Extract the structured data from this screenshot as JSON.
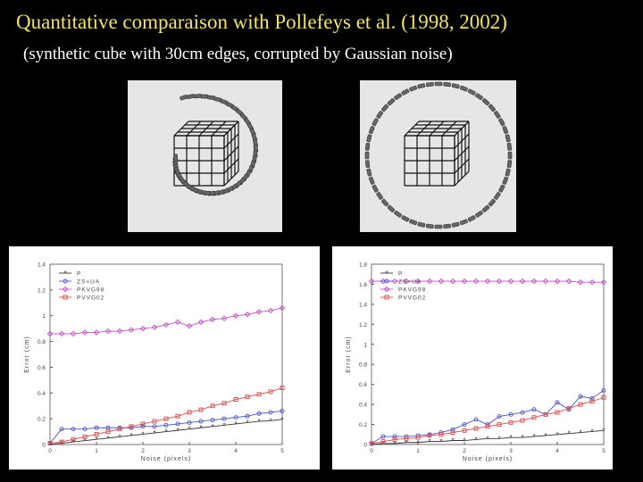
{
  "header": {
    "title": "Quantitative comparaison with Pollefeys et al. (1998, 2002)",
    "subtitle": "(synthetic cube with 30cm edges, corrupted by Gaussian noise)"
  },
  "colors": {
    "title": "#f5e64a",
    "P": "#333333",
    "ZS+UA": "#4a52c8",
    "PKVG98": "#c24ec9",
    "PVVG02": "#d8484a"
  },
  "chart_data": [
    {
      "type": "line",
      "xlabel": "Noise (pixels)",
      "ylabel": "Error (cm)",
      "xlim": [
        0,
        5
      ],
      "ylim": [
        0,
        1.4
      ],
      "xticks": [
        "0",
        "1",
        "2",
        "3",
        "4",
        "5"
      ],
      "yticks": [
        "0",
        "0.2",
        "0.4",
        "0.6",
        "0.8",
        "1",
        "1.2",
        "1.4"
      ],
      "legend_position": "top-left",
      "x": [
        0,
        0.25,
        0.5,
        0.75,
        1,
        1.25,
        1.5,
        1.75,
        2,
        2.25,
        2.5,
        2.75,
        3,
        3.25,
        3.5,
        3.75,
        4,
        4.25,
        4.5,
        4.75,
        5
      ],
      "series": [
        {
          "name": "P",
          "marker": "star",
          "values": [
            0,
            0.01,
            0.02,
            0.03,
            0.04,
            0.05,
            0.06,
            0.07,
            0.08,
            0.09,
            0.1,
            0.11,
            0.12,
            0.13,
            0.14,
            0.15,
            0.16,
            0.17,
            0.18,
            0.185,
            0.195
          ]
        },
        {
          "name": "ZS+UA",
          "marker": "circle",
          "values": [
            0.01,
            0.12,
            0.12,
            0.12,
            0.13,
            0.13,
            0.13,
            0.13,
            0.14,
            0.14,
            0.15,
            0.16,
            0.17,
            0.18,
            0.19,
            0.2,
            0.21,
            0.22,
            0.24,
            0.25,
            0.26
          ]
        },
        {
          "name": "PKVG98",
          "marker": "diamond",
          "values": [
            0.86,
            0.86,
            0.86,
            0.87,
            0.87,
            0.88,
            0.88,
            0.89,
            0.9,
            0.91,
            0.93,
            0.95,
            0.92,
            0.95,
            0.97,
            0.98,
            1.0,
            1.01,
            1.03,
            1.04,
            1.06
          ]
        },
        {
          "name": "PVVG02",
          "marker": "square",
          "values": [
            0.01,
            0.02,
            0.04,
            0.06,
            0.08,
            0.1,
            0.12,
            0.14,
            0.16,
            0.18,
            0.2,
            0.22,
            0.25,
            0.27,
            0.3,
            0.32,
            0.35,
            0.37,
            0.39,
            0.41,
            0.44
          ]
        }
      ]
    },
    {
      "type": "line",
      "xlabel": "Noise (pixels)",
      "ylabel": "Error (cm)",
      "xlim": [
        0,
        5
      ],
      "ylim": [
        0,
        1.8
      ],
      "xticks": [
        "0",
        "1",
        "2",
        "3",
        "4",
        "5"
      ],
      "yticks": [
        "0",
        "0.2",
        "0.4",
        "0.6",
        "0.8",
        "1",
        "1.2",
        "1.4",
        "1.6",
        "1.8"
      ],
      "legend_position": "top-left",
      "x": [
        0,
        0.25,
        0.5,
        0.75,
        1,
        1.25,
        1.5,
        1.75,
        2,
        2.25,
        2.5,
        2.75,
        3,
        3.25,
        3.5,
        3.75,
        4,
        4.25,
        4.5,
        4.75,
        5
      ],
      "series": [
        {
          "name": "P",
          "marker": "star",
          "values": [
            0,
            0.01,
            0.01,
            0.02,
            0.02,
            0.03,
            0.03,
            0.04,
            0.04,
            0.05,
            0.06,
            0.06,
            0.07,
            0.07,
            0.08,
            0.09,
            0.1,
            0.11,
            0.12,
            0.13,
            0.14
          ]
        },
        {
          "name": "ZS+UA",
          "marker": "circle",
          "values": [
            0.01,
            0.08,
            0.08,
            0.08,
            0.09,
            0.1,
            0.12,
            0.15,
            0.2,
            0.25,
            0.2,
            0.28,
            0.3,
            0.32,
            0.35,
            0.3,
            0.42,
            0.35,
            0.48,
            0.46,
            0.54
          ]
        },
        {
          "name": "PKVG98",
          "marker": "diamond",
          "values": [
            1.63,
            1.63,
            1.63,
            1.63,
            1.63,
            1.63,
            1.63,
            1.63,
            1.63,
            1.63,
            1.63,
            1.63,
            1.63,
            1.63,
            1.63,
            1.63,
            1.63,
            1.63,
            1.62,
            1.62,
            1.62
          ]
        },
        {
          "name": "PVVG02",
          "marker": "square",
          "values": [
            0.01,
            0.03,
            0.05,
            0.06,
            0.07,
            0.09,
            0.1,
            0.12,
            0.14,
            0.16,
            0.18,
            0.2,
            0.22,
            0.24,
            0.27,
            0.3,
            0.32,
            0.36,
            0.4,
            0.43,
            0.47
          ]
        }
      ]
    }
  ]
}
